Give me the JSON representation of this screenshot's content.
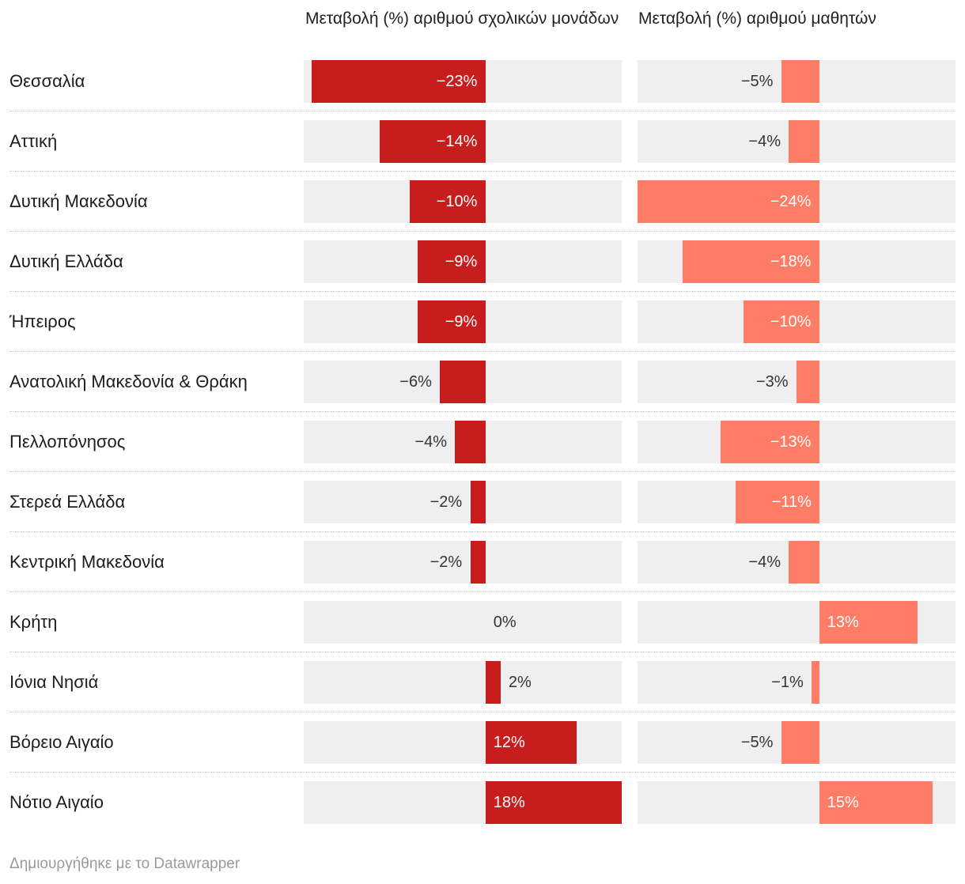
{
  "chart_data": {
    "type": "bar",
    "orientation": "horizontal",
    "categories": [
      "Θεσσαλία",
      "Αττική",
      "Δυτική Μακεδονία",
      "Δυτική Ελλάδα",
      "Ήπειρος",
      "Ανατολική Μακεδονία & Θράκη",
      "Πελλοπόνησος",
      "Στερεά Ελλάδα",
      "Κεντρική Μακεδονία",
      "Κρήτη",
      "Ιόνια Νησιά",
      "Βόρειο Αιγαίο",
      "Νότιο Αιγαίο"
    ],
    "series": [
      {
        "name": "Μεταβολή (%) αριθμού σχολικών μονάδων",
        "color": "#c71e1d",
        "values": [
          -23,
          -14,
          -10,
          -9,
          -9,
          -6,
          -4,
          -2,
          -2,
          0,
          2,
          12,
          18
        ],
        "labels": [
          "−23%",
          "−14%",
          "−10%",
          "−9%",
          "−9%",
          "−6%",
          "−4%",
          "−2%",
          "−2%",
          "0%",
          "2%",
          "12%",
          "18%"
        ],
        "xlim": [
          -24,
          18
        ]
      },
      {
        "name": "Μεταβολή (%) αριθμού μαθητών",
        "color": "#ff7c66",
        "values": [
          -5,
          -4,
          -24,
          -18,
          -10,
          -3,
          -13,
          -11,
          -4,
          13,
          -1,
          -5,
          15
        ],
        "labels": [
          "−5%",
          "−4%",
          "−24%",
          "−18%",
          "−10%",
          "−3%",
          "−13%",
          "−11%",
          "−4%",
          "13%",
          "−1%",
          "−5%",
          "15%"
        ],
        "xlim": [
          -24,
          18
        ]
      }
    ]
  },
  "footer": "Δημιουργήθηκε με το Datawrapper"
}
